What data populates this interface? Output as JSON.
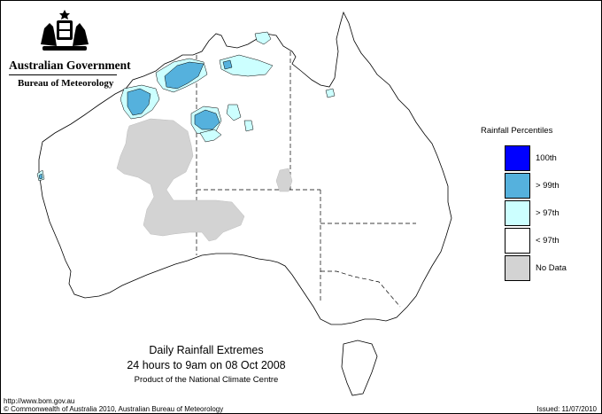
{
  "header": {
    "government": "Australian Government",
    "bureau": "Bureau of Meteorology"
  },
  "map": {
    "caption_title": "Daily Rainfall Extremes",
    "caption_period": "24 hours to 9am on 08 Oct 2008",
    "caption_product": "Product of the National Climate Centre"
  },
  "legend": {
    "title": "Rainfall Percentiles",
    "items": [
      {
        "label": "100th",
        "color": "#0000ff"
      },
      {
        "label": "> 99th",
        "color": "#55b1dd"
      },
      {
        "label": "> 97th",
        "color": "#ccffff"
      },
      {
        "label": "< 97th",
        "color": "#ffffff"
      },
      {
        "label": "No Data",
        "color": "#d3d3d3"
      }
    ]
  },
  "footer": {
    "url": "http://www.bom.gov.au",
    "copyright": "© Commonwealth of Australia 2010, Australian Bureau of Meteorology",
    "issued": "Issued: 11/07/2010"
  }
}
